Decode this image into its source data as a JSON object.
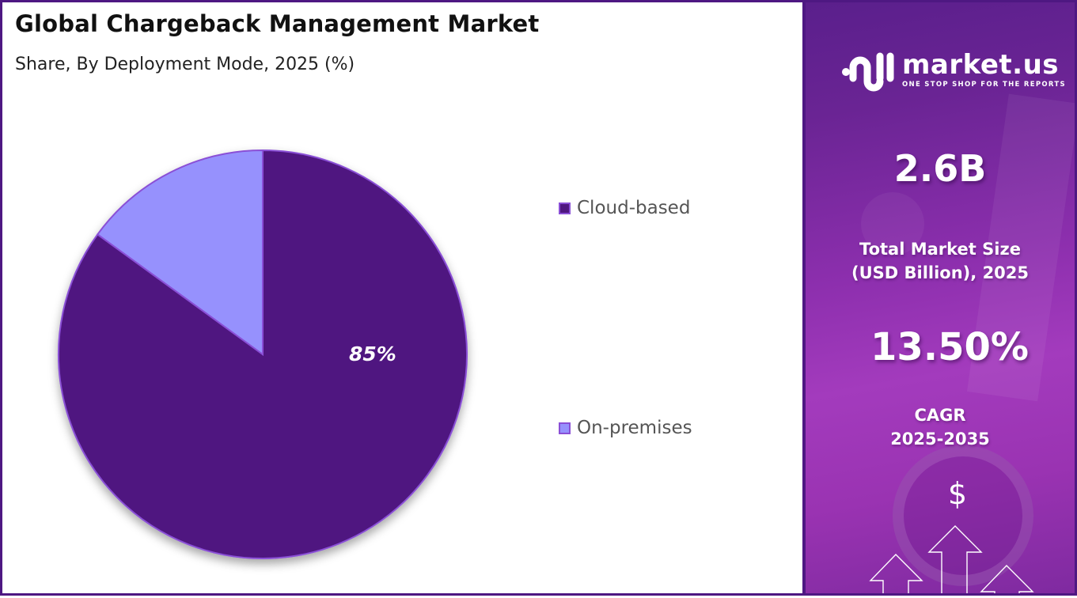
{
  "header": {
    "title": "Global Chargeback Management Market",
    "subtitle": "Share, By Deployment Mode, 2025 (%)"
  },
  "chart_data": {
    "type": "pie",
    "title": "Global Chargeback Management Market",
    "subtitle": "Share, By Deployment Mode, 2025 (%)",
    "categories": [
      "Cloud-based",
      "On-premises"
    ],
    "values": [
      85,
      15
    ],
    "colors": [
      "#4f1780",
      "#9691fd"
    ],
    "data_labels": [
      "85%",
      ""
    ],
    "legend_position": "right",
    "start_angle": "12 o'clock, clockwise"
  },
  "pie": {
    "label_primary": "85%"
  },
  "legend": {
    "items": [
      {
        "label": "Cloud-based",
        "color": "#4f1780"
      },
      {
        "label": "On-premises",
        "color": "#9691fd"
      }
    ]
  },
  "sidebar": {
    "brand": {
      "name": "market.us",
      "tagline": "ONE STOP SHOP FOR THE REPORTS"
    },
    "market_size": {
      "value": "2.6B",
      "caption_line1": "Total Market Size",
      "caption_line2": "(USD Billion), 2025"
    },
    "cagr": {
      "value": "13.50%",
      "caption_line1": "CAGR",
      "caption_line2": "2025-2035"
    },
    "currency_symbol": "$"
  },
  "colors": {
    "frame": "#4e1882",
    "cloud": "#4f1780",
    "on_premises": "#9691fd",
    "slice_border": "#8a4fd6"
  }
}
